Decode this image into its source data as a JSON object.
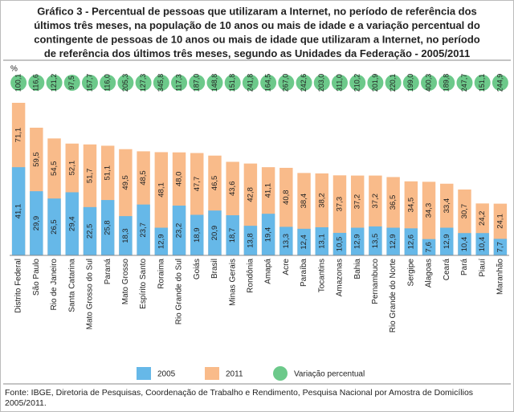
{
  "chart_data": {
    "type": "bar",
    "title": [
      "Gráfico 3 - Percentual de pessoas que utilizaram a Internet, no período de referência dos",
      "últimos três meses, na população de 10 anos ou mais de idade e a variação percentual do",
      "contingente de pessoas de 10 anos ou mais de idade que utilizaram a Internet, no período",
      "de referência dos últimos três meses, segundo as Unidades da Federação - 2005/2011"
    ],
    "unit_label": "%",
    "categories": [
      "Distrito Federal",
      "São Paulo",
      "Rio de Janeiro",
      "Santa Catarina",
      "Mato Grosso do Sul",
      "Paraná",
      "Mato Grosso",
      "Espírito Santo",
      "Roraima",
      "Rio Grande do Sul",
      "Goiás",
      "Brasil",
      "Minas Gerais",
      "Rondônia",
      "Amapá",
      "Acre",
      "Paraíba",
      "Tocantins",
      "Amazonas",
      "Bahia",
      "Pernambuco",
      "Rio Grande do Norte",
      "Sergipe",
      "Alagoas",
      "Ceará",
      "Pará",
      "Piauí",
      "Maranhão"
    ],
    "series": [
      {
        "name": "2005",
        "color": "#66b8e8",
        "values": [
          41.1,
          29.9,
          26.5,
          29.4,
          22.5,
          25.8,
          18.3,
          23.7,
          12.9,
          23.2,
          18.9,
          20.9,
          18.7,
          13.8,
          19.4,
          13.3,
          12.4,
          13.1,
          10.5,
          12.9,
          13.5,
          12.9,
          12.6,
          7.6,
          12.9,
          10.4,
          10.4,
          7.7
        ],
        "value_labels": [
          "41,1",
          "29,9",
          "26,5",
          "29,4",
          "22,5",
          "25,8",
          "18,3",
          "23,7",
          "12,9",
          "23,2",
          "18,9",
          "20,9",
          "18,7",
          "13,8",
          "19,4",
          "13,3",
          "12,4",
          "13,1",
          "10,5",
          "12,9",
          "13,5",
          "12,9",
          "12,6",
          "7,6",
          "12,9",
          "10,4",
          "10,4",
          "7,7"
        ]
      },
      {
        "name": "2011",
        "color": "#f9bb8a",
        "values": [
          71.1,
          59.5,
          54.5,
          52.1,
          51.7,
          51.1,
          49.5,
          48.5,
          48.1,
          48.0,
          47.7,
          46.5,
          43.6,
          42.8,
          41.1,
          40.8,
          38.4,
          38.2,
          37.3,
          37.2,
          37.2,
          36.5,
          34.5,
          34.3,
          33.4,
          30.7,
          24.2,
          24.1
        ],
        "value_labels": [
          "71,1",
          "59,5",
          "54,5",
          "52,1",
          "51,7",
          "51,1",
          "49,5",
          "48,5",
          "48,1",
          "48,0",
          "47,7",
          "46,5",
          "43,6",
          "42,8",
          "41,1",
          "40,8",
          "38,4",
          "38,2",
          "37,3",
          "37,2",
          "37,2",
          "36,5",
          "34,5",
          "34,3",
          "33,4",
          "30,7",
          "24,2",
          "24,1"
        ]
      },
      {
        "name": "Variação percentual",
        "color": "#6cc98a",
        "values": [
          100.1,
          116.6,
          121.2,
          97.5,
          157.7,
          116.0,
          205.3,
          127.3,
          345.8,
          117.3,
          187.0,
          148.8,
          151.8,
          241.8,
          164.5,
          267.0,
          242.6,
          203.0,
          311.0,
          210.2,
          201.9,
          220.1,
          199.0,
          400.3,
          189.8,
          247.7,
          151.1,
          244.9
        ],
        "value_labels": [
          "100,1",
          "116,6",
          "121,2",
          "97,5",
          "157,7",
          "116,0",
          "205,3",
          "127,3",
          "345,8",
          "117,3",
          "187,0",
          "148,8",
          "151,8",
          "241,8",
          "164,5",
          "267,0",
          "242,6",
          "203,0",
          "311,0",
          "210,2",
          "201,9",
          "220,1",
          "199,0",
          "400,3",
          "189,8",
          "247,7",
          "151,1",
          "244,9"
        ]
      }
    ],
    "source": "Fonte: IBGE, Diretoria de Pesquisas, Coordenação de Trabalho e Rendimento, Pesquisa Nacional por Amostra de Domicílios 2005/2011."
  }
}
